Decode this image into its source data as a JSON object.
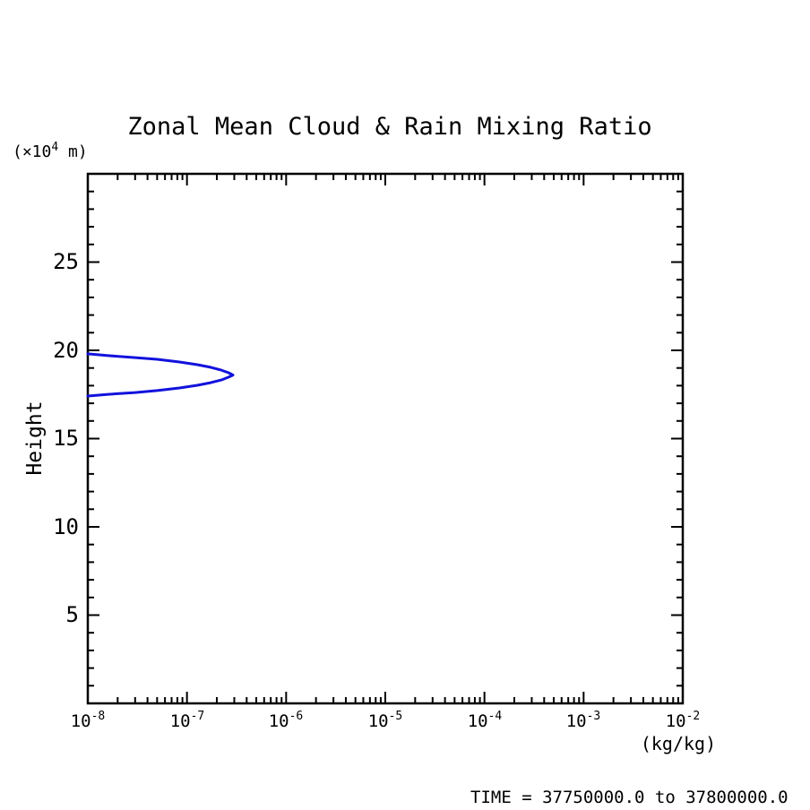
{
  "figure": {
    "title": "Zonal Mean Cloud & Rain Mixing Ratio",
    "time_caption": "TIME = 37750000.0 to 37800000.0",
    "background": "#ffffff"
  },
  "axes": {
    "x": {
      "unit": "(kg/kg)",
      "scale": "log",
      "ticks": [
        {
          "base": "10",
          "exp": "-8"
        },
        {
          "base": "10",
          "exp": "-7"
        },
        {
          "base": "10",
          "exp": "-6"
        },
        {
          "base": "10",
          "exp": "-5"
        },
        {
          "base": "10",
          "exp": "-4"
        },
        {
          "base": "10",
          "exp": "-3"
        },
        {
          "base": "10",
          "exp": "-2"
        }
      ]
    },
    "y": {
      "label": "Height",
      "unit_prefix": "(×10",
      "unit_exp": "4",
      "unit_suffix": " m)",
      "tick_labels": [
        "5",
        "10",
        "15",
        "20",
        "25"
      ],
      "minor_step": 1,
      "major_step": 5
    }
  },
  "colors": {
    "axis": "#000000",
    "contour": "#1212dd"
  },
  "chart_data": {
    "type": "line",
    "subtype": "contour",
    "title": "Zonal Mean Cloud & Rain Mixing Ratio",
    "xlabel": "(kg/kg)",
    "ylabel": "Height (×10^4 m)",
    "x_scale": "log",
    "xlim": [
      1e-08,
      0.01
    ],
    "ylim": [
      0,
      30
    ],
    "x_ticks": [
      1e-08,
      1e-07,
      1e-06,
      1e-05,
      0.0001,
      0.001,
      0.01
    ],
    "y_major_ticks": [
      5,
      10,
      15,
      20,
      25
    ],
    "grid": false,
    "legend": "none",
    "series": [
      {
        "name": "cloud-rain-mixing-ratio-contour",
        "color": "#1212dd",
        "points": [
          [
            1e-08,
            19.8
          ],
          [
            1.6e-08,
            19.7
          ],
          [
            3e-08,
            19.59
          ],
          [
            5e-08,
            19.49
          ],
          [
            8.4e-08,
            19.34
          ],
          [
            1.27e-07,
            19.19
          ],
          [
            1.73e-07,
            19.04
          ],
          [
            2.22e-07,
            18.88
          ],
          [
            2.63e-07,
            18.73
          ],
          [
            2.91e-07,
            18.6
          ],
          [
            2.63e-07,
            18.48
          ],
          [
            2.22e-07,
            18.32
          ],
          [
            1.73e-07,
            18.17
          ],
          [
            1.27e-07,
            18.02
          ],
          [
            8.4e-08,
            17.87
          ],
          [
            5e-08,
            17.72
          ],
          [
            3e-08,
            17.61
          ],
          [
            1.6e-08,
            17.51
          ],
          [
            1e-08,
            17.41
          ]
        ]
      }
    ]
  }
}
